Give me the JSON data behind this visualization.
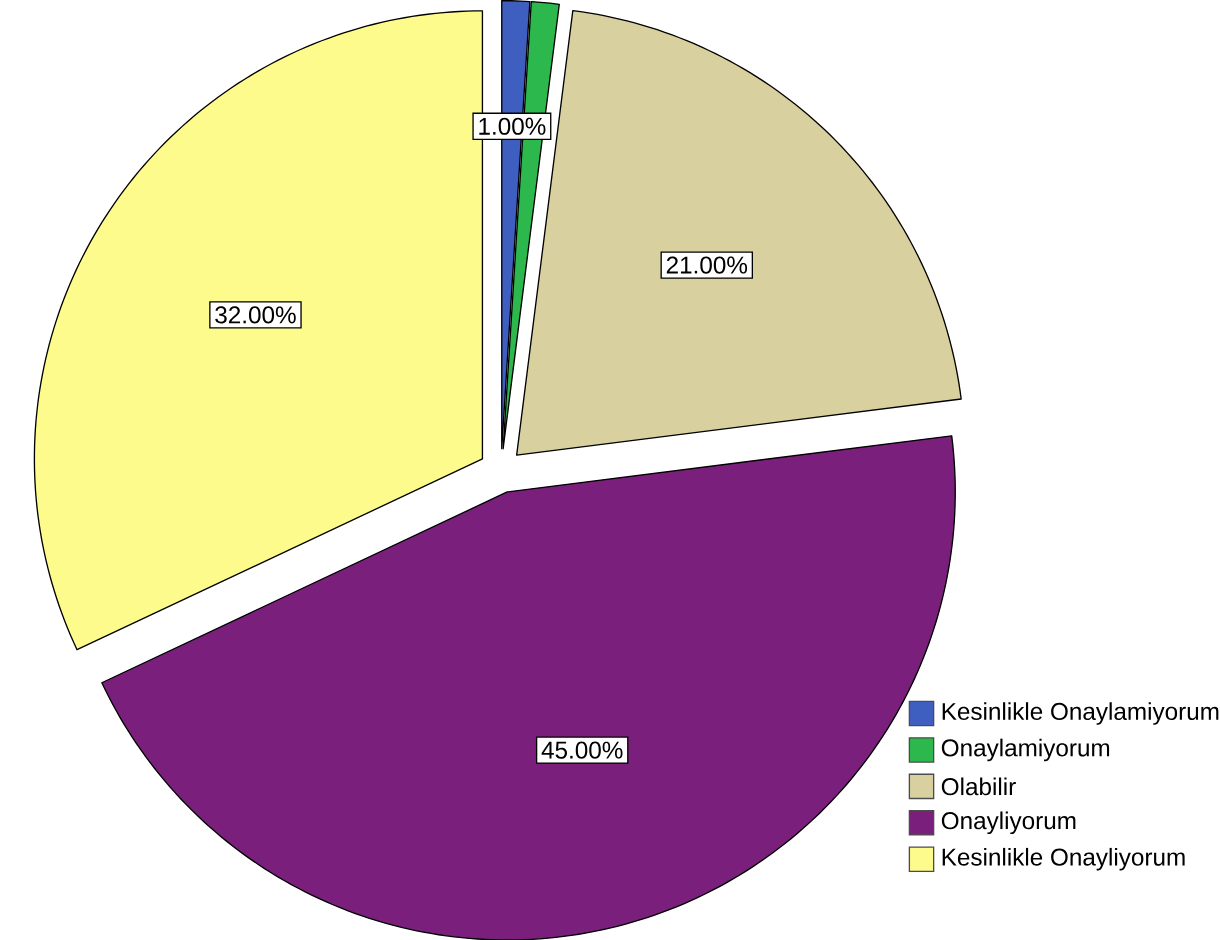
{
  "chart_data": {
    "type": "pie",
    "categories": [
      "Kesinlikle Onaylamiyorum",
      "Onaylamiyorum",
      "Olabilir",
      "Onayliyorum",
      "Kesinlikle Onayliyorum"
    ],
    "values": [
      1,
      1,
      21,
      45,
      32
    ],
    "colors": [
      "#3f5fc0",
      "#2db84d",
      "#d8d09e",
      "#7b1f7c",
      "#fdfb8c"
    ],
    "value_labels": [
      "1.00%",
      null,
      "21.00%",
      "45.00%",
      "32.00%"
    ],
    "legend": "bottom right"
  }
}
